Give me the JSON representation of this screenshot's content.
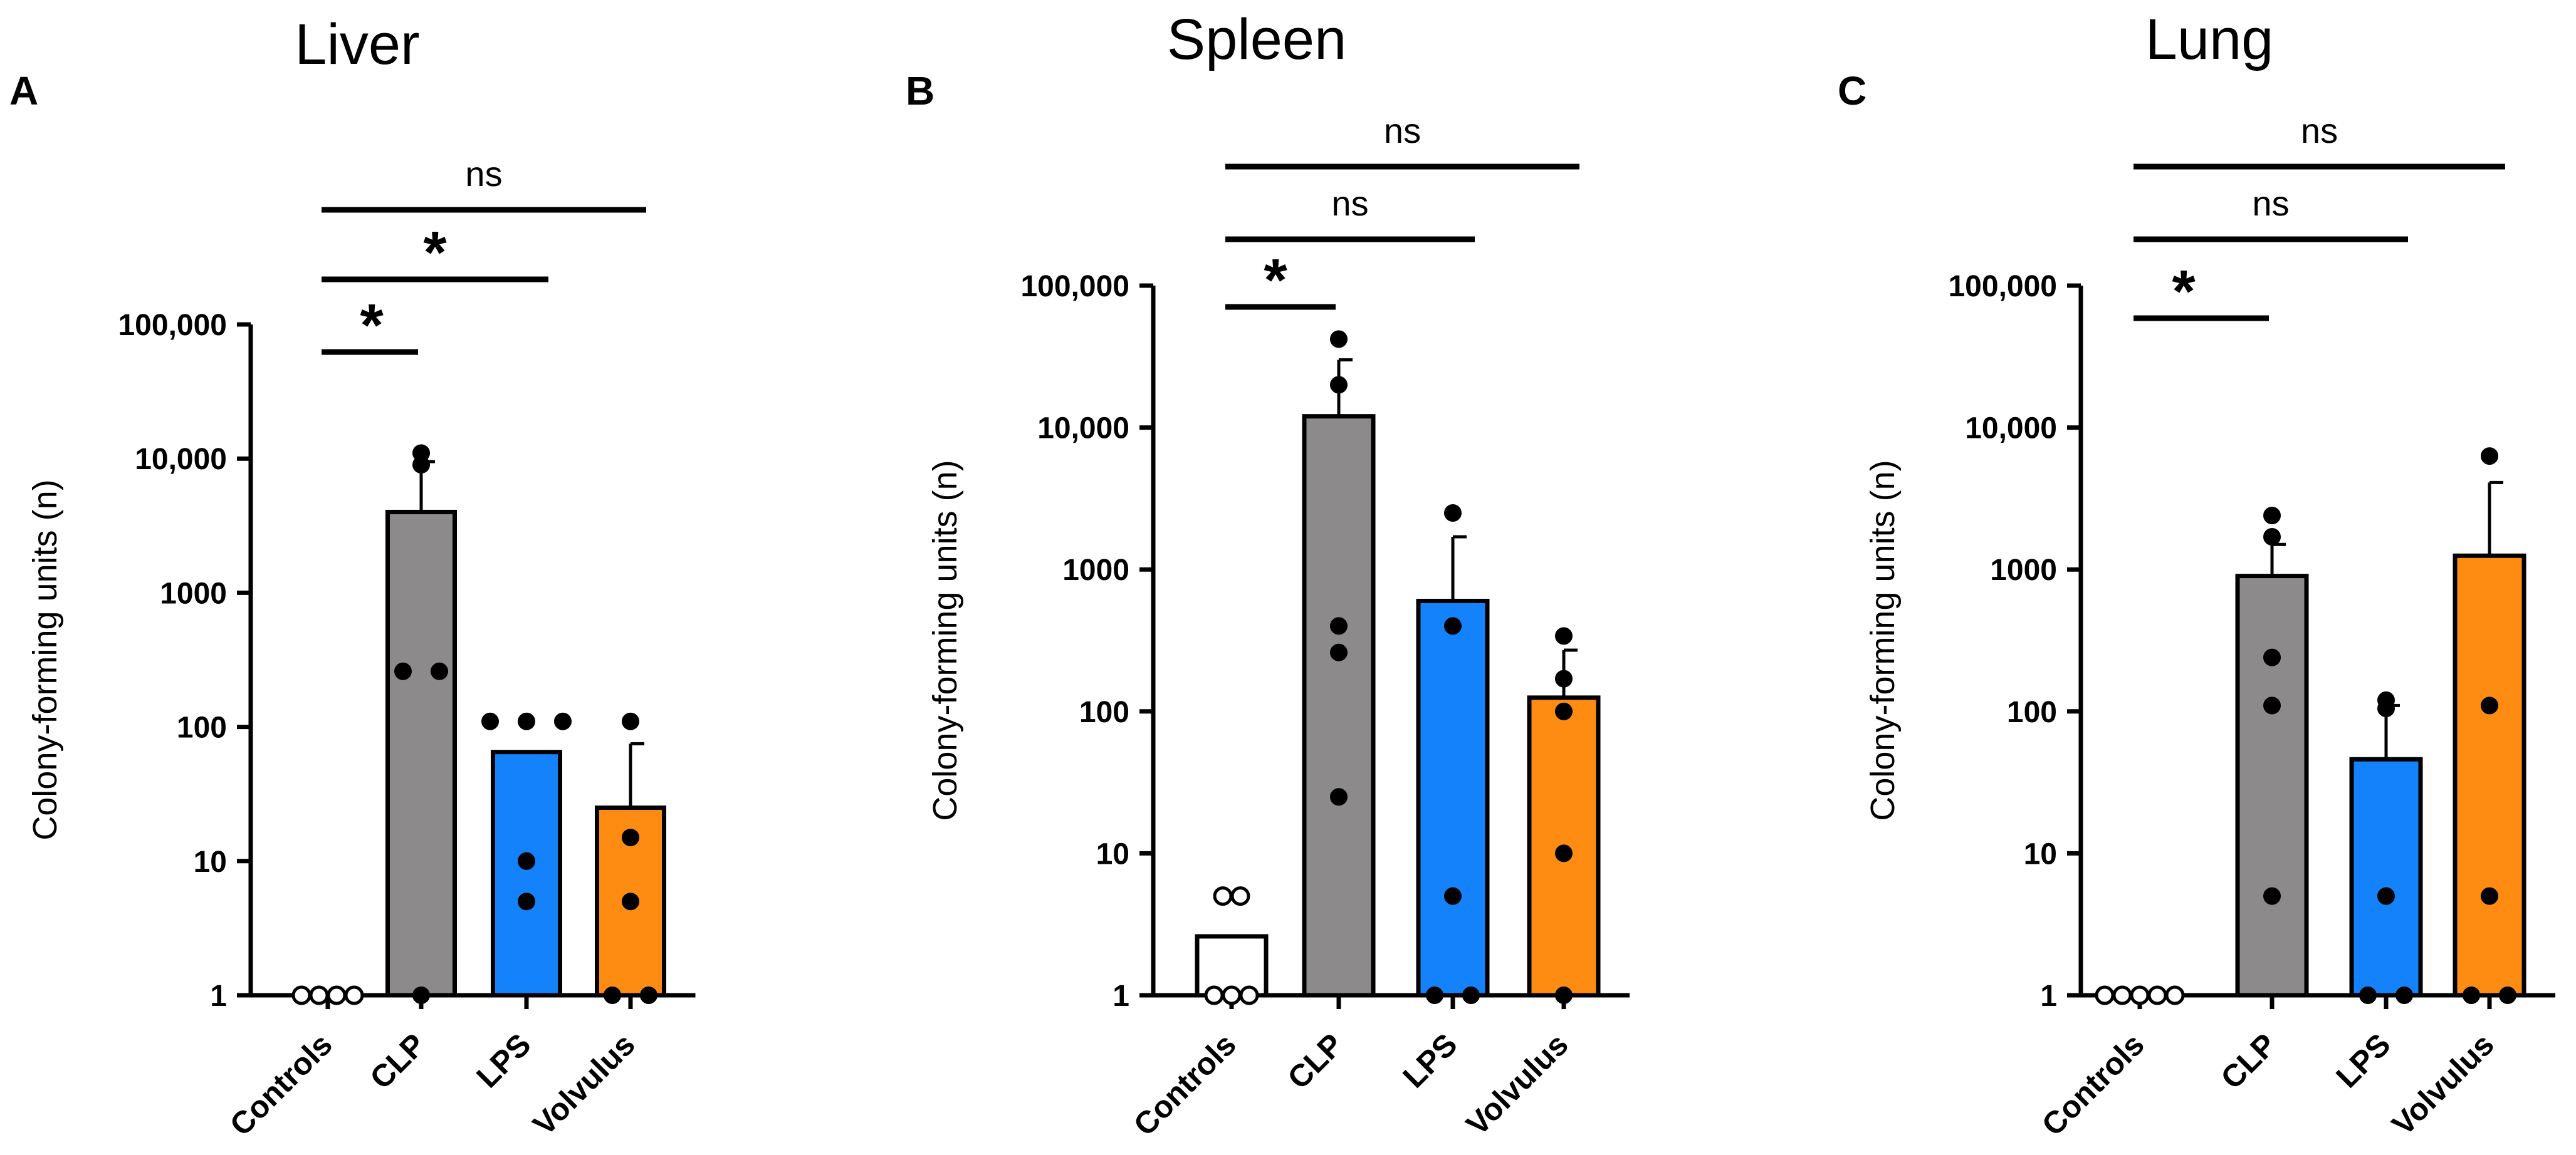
{
  "chart_data": [
    {
      "type": "bar",
      "panel": "A",
      "title": "Liver",
      "ylabel": "Colony-forming units (n)",
      "yscale": "log",
      "ylim": [
        1,
        100000
      ],
      "yticks": [
        "1",
        "10",
        "100",
        "1000",
        "10,000",
        "100,000"
      ],
      "categories": [
        "Controls",
        "CLP",
        "LPS",
        "Volvulus"
      ],
      "values": [
        1,
        4000,
        65,
        25
      ],
      "error_upper": [
        null,
        9500,
        null,
        75
      ],
      "points": [
        [
          1,
          1,
          1,
          1
        ],
        [
          11000,
          9000,
          260,
          260,
          1
        ],
        [
          110,
          110,
          110,
          10,
          5
        ],
        [
          110,
          15,
          5,
          1,
          1
        ]
      ],
      "colors": [
        "#ffffff",
        "#8c8a8a",
        "#1482fa",
        "#ff8c12"
      ],
      "comparisons": [
        {
          "from": "Controls",
          "to": "CLP",
          "label": "*"
        },
        {
          "from": "Controls",
          "to": "LPS",
          "label": "*"
        },
        {
          "from": "Controls",
          "to": "Volvulus",
          "label": "ns"
        }
      ]
    },
    {
      "type": "bar",
      "panel": "B",
      "title": "Spleen",
      "ylabel": "Colony-forming units (n)",
      "yscale": "log",
      "ylim": [
        1,
        100000
      ],
      "yticks": [
        "1",
        "10",
        "100",
        "1000",
        "10,000",
        "100,000"
      ],
      "categories": [
        "Controls",
        "CLP",
        "LPS",
        "Volvulus"
      ],
      "values": [
        2.6,
        12000,
        600,
        125
      ],
      "error_upper": [
        null,
        30000,
        1700,
        270
      ],
      "points": [
        [
          5,
          5,
          1,
          1,
          1
        ],
        [
          42000,
          20000,
          400,
          260,
          25
        ],
        [
          2500,
          400,
          5,
          1,
          1
        ],
        [
          340,
          170,
          100,
          10,
          1
        ]
      ],
      "colors": [
        "#ffffff",
        "#8c8a8a",
        "#1482fa",
        "#ff8c12"
      ],
      "comparisons": [
        {
          "from": "Controls",
          "to": "CLP",
          "label": "*"
        },
        {
          "from": "Controls",
          "to": "LPS",
          "label": "ns"
        },
        {
          "from": "Controls",
          "to": "Volvulus",
          "label": "ns"
        }
      ]
    },
    {
      "type": "bar",
      "panel": "C",
      "title": "Lung",
      "ylabel": "Colony-forming units (n)",
      "yscale": "log",
      "ylim": [
        1,
        100000
      ],
      "yticks": [
        "1",
        "10",
        "100",
        "1000",
        "10,000",
        "100,000"
      ],
      "categories": [
        "Controls",
        "CLP",
        "LPS",
        "Volvulus"
      ],
      "values": [
        1,
        900,
        46,
        1250
      ],
      "error_upper": [
        null,
        1500,
        110,
        4100
      ],
      "points": [
        [
          1,
          1,
          1,
          1,
          1
        ],
        [
          2400,
          1700,
          240,
          110,
          5
        ],
        [
          120,
          105,
          5,
          1,
          1
        ],
        [
          6300,
          110,
          5,
          1,
          1
        ]
      ],
      "colors": [
        "#ffffff",
        "#8c8a8a",
        "#1482fa",
        "#ff8c12"
      ],
      "comparisons": [
        {
          "from": "Controls",
          "to": "CLP",
          "label": "*"
        },
        {
          "from": "Controls",
          "to": "LPS",
          "label": "ns"
        },
        {
          "from": "Controls",
          "to": "Volvulus",
          "label": "ns"
        }
      ]
    }
  ]
}
